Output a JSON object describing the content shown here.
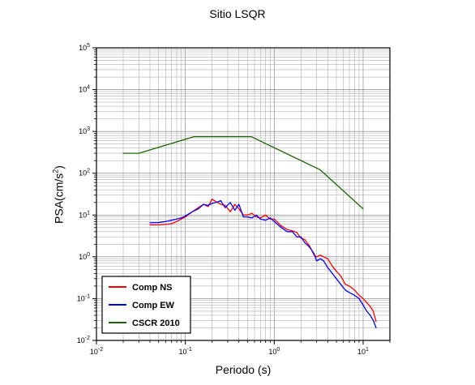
{
  "chart_data": {
    "type": "line",
    "title": "Sitio LSQR",
    "xlabel": "Periodo (s)",
    "ylabel": {
      "base": "PSA(cm/s",
      "sup": "2",
      "end": ")"
    },
    "xscale": "log",
    "yscale": "log",
    "xlim": [
      0.01,
      20
    ],
    "ylim": [
      0.01,
      100000
    ],
    "x_ticks": [
      {
        "mant": "10",
        "exp": "-2"
      },
      {
        "mant": "10",
        "exp": "-1"
      },
      {
        "mant": "10",
        "exp": "0"
      },
      {
        "mant": "10",
        "exp": "1"
      }
    ],
    "y_ticks": [
      {
        "mant": "10",
        "exp": "-2"
      },
      {
        "mant": "10",
        "exp": "-1"
      },
      {
        "mant": "10",
        "exp": "0"
      },
      {
        "mant": "10",
        "exp": "1"
      },
      {
        "mant": "10",
        "exp": "2"
      },
      {
        "mant": "10",
        "exp": "3"
      },
      {
        "mant": "10",
        "exp": "4"
      },
      {
        "mant": "10",
        "exp": "5"
      }
    ],
    "grid": true,
    "legend_position": "bottom-left",
    "series": [
      {
        "name": "Comp NS",
        "color": "#ff0000",
        "x": [
          0.04,
          0.05,
          0.06,
          0.07,
          0.08,
          0.09,
          0.1,
          0.12,
          0.14,
          0.16,
          0.18,
          0.2,
          0.22,
          0.25,
          0.28,
          0.32,
          0.36,
          0.4,
          0.45,
          0.5,
          0.56,
          0.63,
          0.7,
          0.8,
          0.9,
          1.0,
          1.2,
          1.4,
          1.6,
          1.8,
          2.0,
          2.2,
          2.5,
          2.8,
          3.0,
          3.3,
          3.6,
          4.0,
          4.5,
          5.0,
          5.6,
          6.3,
          7.0,
          8.0,
          9.0,
          10.0,
          11.0,
          12.0,
          13.0,
          14.0
        ],
        "y": [
          5.8,
          5.8,
          6.0,
          6.2,
          7.0,
          8.0,
          9.0,
          12.0,
          15.0,
          18.0,
          16.0,
          24.0,
          21.0,
          18.0,
          17.0,
          12.0,
          18.0,
          14.0,
          10.0,
          10.0,
          11.0,
          9.0,
          8.5,
          10.0,
          8.0,
          8.0,
          5.5,
          4.5,
          4.2,
          3.8,
          2.8,
          2.6,
          1.8,
          1.1,
          1.0,
          1.1,
          1.0,
          0.9,
          0.6,
          0.45,
          0.35,
          0.22,
          0.2,
          0.16,
          0.12,
          0.1,
          0.08,
          0.065,
          0.05,
          0.028
        ]
      },
      {
        "name": "Comp EW",
        "color": "#0000ff",
        "x": [
          0.04,
          0.05,
          0.06,
          0.07,
          0.08,
          0.09,
          0.1,
          0.12,
          0.14,
          0.16,
          0.18,
          0.2,
          0.22,
          0.25,
          0.28,
          0.32,
          0.36,
          0.4,
          0.45,
          0.5,
          0.56,
          0.63,
          0.7,
          0.8,
          0.9,
          1.0,
          1.2,
          1.4,
          1.6,
          1.8,
          2.0,
          2.2,
          2.5,
          2.8,
          3.0,
          3.3,
          3.6,
          4.0,
          4.5,
          5.0,
          5.6,
          6.3,
          7.0,
          8.0,
          9.0,
          10.0,
          11.0,
          12.0,
          13.0,
          14.0
        ],
        "y": [
          6.5,
          6.6,
          7.0,
          7.5,
          8.0,
          8.5,
          9.5,
          12.0,
          14.0,
          18.0,
          17.0,
          19.0,
          20.0,
          22.0,
          15.0,
          20.0,
          13.0,
          18.0,
          9.0,
          9.0,
          8.5,
          10.0,
          8.0,
          7.5,
          8.5,
          7.0,
          5.0,
          4.0,
          4.0,
          3.0,
          3.0,
          2.2,
          1.7,
          1.2,
          0.8,
          0.9,
          0.8,
          0.55,
          0.4,
          0.3,
          0.22,
          0.16,
          0.14,
          0.12,
          0.1,
          0.07,
          0.05,
          0.04,
          0.03,
          0.02
        ]
      },
      {
        "name": "CSCR 2010",
        "color": "#1a6600",
        "x": [
          0.02,
          0.03,
          0.125,
          0.55,
          3.3,
          10.0
        ],
        "y": [
          300,
          300,
          750,
          750,
          120,
          14
        ]
      }
    ]
  }
}
